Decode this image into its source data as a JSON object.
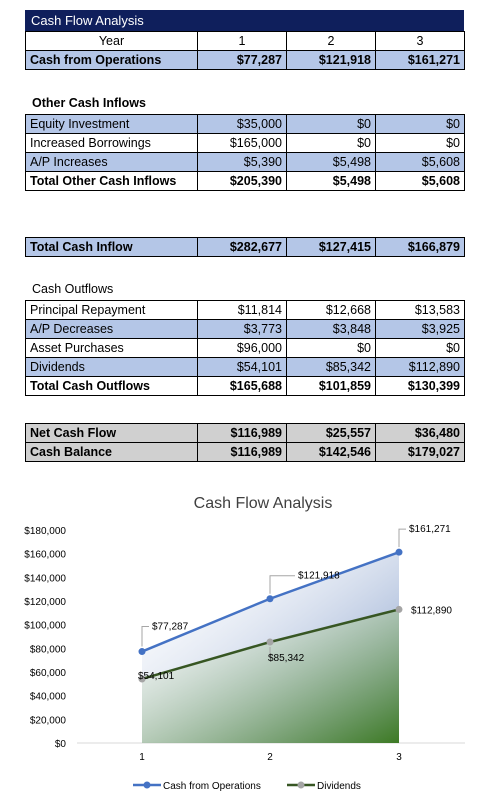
{
  "banner_title": "Cash Flow Analysis",
  "header": {
    "label": "Year",
    "years": [
      "1",
      "2",
      "3"
    ]
  },
  "operations": {
    "label": "Cash from Operations",
    "values": [
      "$77,287",
      "$121,918",
      "$161,271"
    ]
  },
  "other_inflows": {
    "title": "Other Cash Inflows",
    "rows": [
      {
        "label": "Equity Investment",
        "values": [
          "$35,000",
          "$0",
          "$0"
        ]
      },
      {
        "label": "Increased Borrowings",
        "values": [
          "$165,000",
          "$0",
          "$0"
        ]
      },
      {
        "label": "A/P Increases",
        "values": [
          "$5,390",
          "$5,498",
          "$5,608"
        ]
      }
    ],
    "total": {
      "label": "Total Other Cash Inflows",
      "values": [
        "$205,390",
        "$5,498",
        "$5,608"
      ]
    }
  },
  "total_inflow": {
    "label": "Total Cash Inflow",
    "values": [
      "$282,677",
      "$127,415",
      "$166,879"
    ]
  },
  "outflows": {
    "title": "Cash Outflows",
    "rows": [
      {
        "label": "Principal Repayment",
        "values": [
          "$11,814",
          "$12,668",
          "$13,583"
        ]
      },
      {
        "label": "A/P Decreases",
        "values": [
          "$3,773",
          "$3,848",
          "$3,925"
        ]
      },
      {
        "label": "Asset Purchases",
        "values": [
          "$96,000",
          "$0",
          "$0"
        ]
      },
      {
        "label": "Dividends",
        "values": [
          "$54,101",
          "$85,342",
          "$112,890"
        ]
      }
    ],
    "total": {
      "label": "Total Cash Outflows",
      "values": [
        "$165,688",
        "$101,859",
        "$130,399"
      ]
    }
  },
  "net": {
    "rows": [
      {
        "label": "Net Cash Flow",
        "values": [
          "$116,989",
          "$25,557",
          "$36,480"
        ]
      },
      {
        "label": "Cash Balance",
        "values": [
          "$116,989",
          "$142,546",
          "$179,027"
        ]
      }
    ]
  },
  "chart_data": {
    "type": "area",
    "title": "Cash Flow Analysis",
    "x": [
      1,
      2,
      3
    ],
    "categories": [
      "1",
      "2",
      "3"
    ],
    "ylim": [
      0,
      180000
    ],
    "yticks": [
      0,
      20000,
      40000,
      60000,
      80000,
      100000,
      120000,
      140000,
      160000,
      180000
    ],
    "ytick_labels": [
      "$0",
      "$20,000",
      "$40,000",
      "$60,000",
      "$80,000",
      "$100,000",
      "$120,000",
      "$140,000",
      "$160,000",
      "$180,000"
    ],
    "grid": false,
    "legend": "bottom",
    "series": [
      {
        "name": "Cash from Operations",
        "values": [
          77287,
          121918,
          161271
        ],
        "labels": [
          "$77,287",
          "$121,918",
          "$161,271"
        ],
        "color": "#4472c4",
        "fill": "#8497c6"
      },
      {
        "name": "Dividends",
        "values": [
          54101,
          85342,
          112890
        ],
        "labels": [
          "$54,101",
          "$85,342",
          "$112,890"
        ],
        "color": "#375623",
        "marker": "#a5a5a5",
        "fill": "#548235"
      }
    ]
  }
}
